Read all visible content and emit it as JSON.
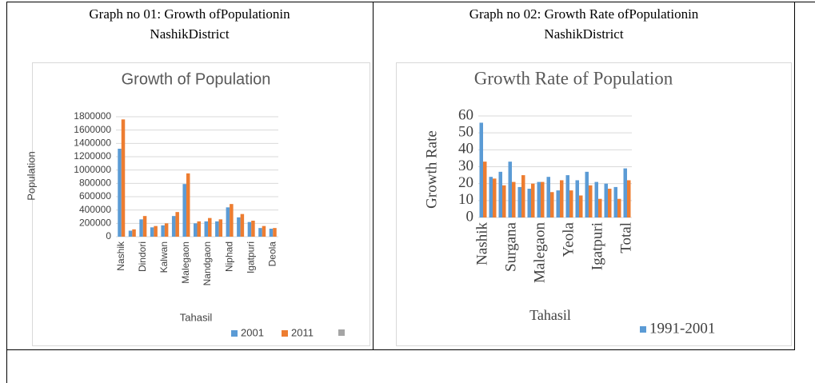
{
  "captions": [
    [
      "Graph no 01: Growth ofPopulationin",
      "NashikDistrict"
    ],
    [
      "Graph no 02: Growth Rate ofPopulationin",
      "NashikDistrict"
    ]
  ],
  "chart_data": [
    {
      "type": "bar",
      "title": "Growth  of Population",
      "x_label": "Tahasil",
      "y_label": "Population",
      "categories": [
        "Nashik",
        null,
        "Dindori",
        null,
        "Kalwan",
        null,
        "Malegaon",
        null,
        "Nandgaon",
        null,
        "Niphad",
        null,
        "Igatpuri",
        null,
        "Deola"
      ],
      "series": [
        {
          "name": "2001",
          "color": "#5b9bd5",
          "values": [
            1320000,
            90000,
            260000,
            140000,
            170000,
            310000,
            790000,
            200000,
            230000,
            230000,
            440000,
            290000,
            220000,
            130000,
            120000
          ]
        },
        {
          "name": "2011",
          "color": "#ed7d31",
          "values": [
            1760000,
            110000,
            310000,
            160000,
            200000,
            370000,
            950000,
            230000,
            280000,
            260000,
            490000,
            340000,
            240000,
            160000,
            130000
          ]
        }
      ],
      "ylim": [
        0,
        1800000
      ],
      "yticks": [
        0,
        200000,
        400000,
        600000,
        800000,
        1000000,
        1200000,
        1400000,
        1600000,
        1800000
      ],
      "grid": true
    },
    {
      "type": "bar",
      "title": "Growth Rate of Population",
      "x_label": "Tahasil",
      "y_label": "Growth Rate",
      "categories": [
        "Nashik",
        null,
        null,
        "Surgana",
        null,
        null,
        "Malegaon",
        null,
        null,
        "Yeola",
        null,
        null,
        "Igatpuri",
        null,
        null,
        "Total"
      ],
      "series": [
        {
          "name": "1991-2001",
          "color": "#5b9bd5",
          "values": [
            56,
            24,
            27,
            33,
            18,
            17,
            21,
            24,
            16,
            25,
            22,
            27,
            21,
            20,
            18,
            29
          ]
        },
        {
          "color": "#ed7d31",
          "values": [
            33,
            23,
            19,
            21,
            25,
            20,
            21,
            15,
            22,
            16,
            13,
            19,
            11,
            17,
            11,
            22
          ]
        }
      ],
      "ylim": [
        0,
        60
      ],
      "yticks": [
        0,
        10,
        20,
        30,
        40,
        50,
        60
      ],
      "grid": true
    }
  ]
}
